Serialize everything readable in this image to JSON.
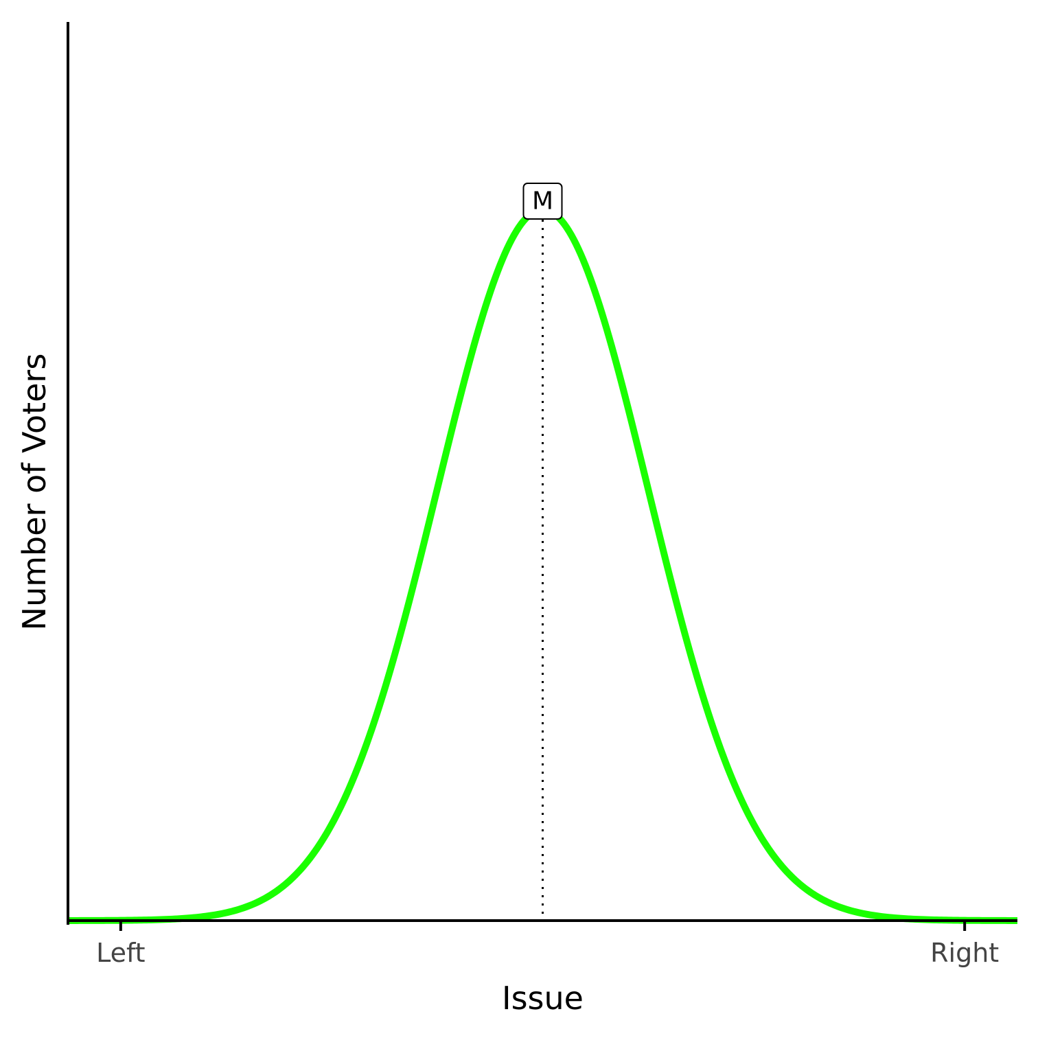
{
  "chart_data": {
    "type": "line",
    "xlabel": "Issue",
    "ylabel": "Number of Voters",
    "x_ticks": [
      {
        "value": 0,
        "label": "Left"
      },
      {
        "value": 1,
        "label": "Right"
      }
    ],
    "xlim": [
      -0.0625,
      1.0625
    ],
    "ylim": [
      0,
      1.0
    ],
    "series": [
      {
        "color": "#1aff00",
        "distribution": "normal",
        "mean": 0.5,
        "sd": 0.125
      }
    ],
    "annotations": [
      {
        "label": "M",
        "x": 0.5,
        "line_style": "dotted"
      }
    ],
    "grid": false,
    "legend": false
  }
}
